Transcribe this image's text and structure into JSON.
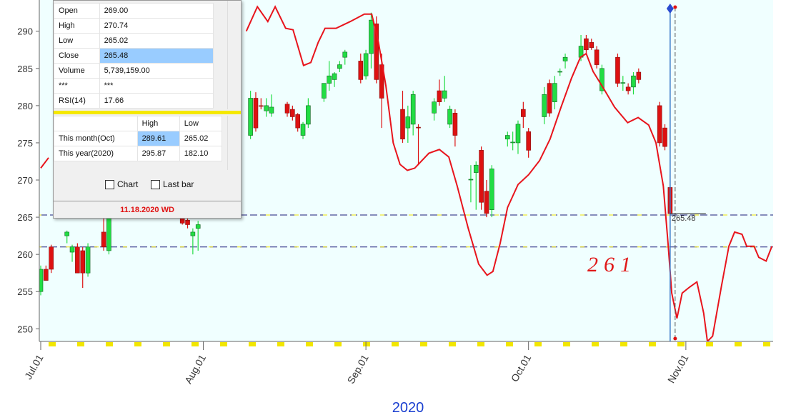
{
  "chart_data": {
    "type": "candlestick",
    "xlabel": "2020",
    "x": [
      0,
      1,
      2,
      5,
      6,
      7,
      8,
      9,
      12,
      13,
      27,
      28,
      29,
      30,
      40,
      41,
      42,
      43,
      44,
      47,
      48,
      49,
      50,
      51,
      54,
      55,
      56,
      57,
      58,
      61,
      62,
      63,
      64,
      65,
      69,
      70,
      71,
      72,
      75,
      76,
      77,
      78,
      79,
      82,
      83,
      84,
      85,
      86,
      89,
      90,
      91,
      92,
      93,
      96,
      97,
      98,
      99,
      100,
      103,
      104,
      105,
      106,
      107,
      110,
      111,
      112,
      113,
      114,
      118,
      119,
      120
    ],
    "open": [
      255,
      258,
      261,
      262.5,
      260.3,
      261,
      260.5,
      257.5,
      263,
      260.5,
      265.5,
      264.6,
      262.5,
      263.5,
      276,
      281,
      280,
      279.3,
      279,
      280.2,
      279.5,
      278.8,
      276,
      277.5,
      281,
      283,
      283.5,
      285,
      286.5,
      286,
      284,
      287,
      291,
      285.5,
      279.5,
      277,
      277.5,
      277.1,
      279,
      282,
      281,
      277.5,
      279,
      270,
      271,
      274,
      268.5,
      266,
      275.5,
      275,
      275,
      279.5,
      276.5,
      278.5,
      283,
      280.5,
      284.5,
      286,
      286.5,
      289,
      288.5,
      287.5,
      282,
      286.5,
      283,
      282.5,
      282.5,
      284.5,
      280,
      277,
      269
    ],
    "high": [
      258.5,
      258.5,
      261.3,
      263.2,
      261.3,
      261.5,
      261,
      261.5,
      266,
      268,
      266,
      265,
      263.5,
      264.5,
      282,
      281.8,
      281,
      281,
      281.5,
      280.5,
      280,
      279,
      277.8,
      281,
      283,
      286,
      284.5,
      286,
      287.5,
      287,
      287.5,
      292.5,
      292,
      287,
      282,
      280,
      282,
      277.5,
      281,
      283.5,
      284,
      280,
      279.5,
      272,
      272.5,
      274.5,
      270,
      272,
      276.5,
      276.5,
      278,
      280.5,
      277,
      282.5,
      283.5,
      284,
      285,
      287,
      289.5,
      289.5,
      289,
      288,
      285.5,
      287,
      284,
      283,
      284.5,
      285,
      280.5,
      277.5,
      270.74
    ],
    "low": [
      254.5,
      256.5,
      257.5,
      261.5,
      259,
      257.5,
      255.5,
      257,
      260.5,
      260,
      264,
      263.5,
      260,
      260.5,
      275.5,
      276.5,
      279.5,
      278.5,
      278.5,
      278.5,
      278,
      276.5,
      275.5,
      277,
      280.5,
      282,
      282.5,
      284.5,
      285.5,
      283,
      283.5,
      285,
      283,
      277,
      275,
      275,
      276,
      272,
      278,
      280,
      280.5,
      277,
      274.5,
      267,
      266,
      266,
      265,
      265,
      274.5,
      274,
      273.5,
      277,
      273,
      277.5,
      278.5,
      279.5,
      284,
      285,
      286,
      287,
      287.5,
      285,
      281.5,
      282.5,
      282,
      281.5,
      281.5,
      283,
      274.5,
      274,
      265.02
    ],
    "close": [
      258,
      256.5,
      258,
      263,
      261,
      257.5,
      257.5,
      261,
      261,
      265.5,
      264.2,
      264,
      263,
      264,
      281,
      277,
      279.9,
      280,
      279.8,
      279,
      278.5,
      277,
      277.5,
      280,
      283,
      284,
      284.3,
      285.5,
      287.2,
      283.5,
      287,
      291.5,
      283.5,
      281,
      275.5,
      278.5,
      281.5,
      277,
      280.5,
      280.5,
      282,
      279.5,
      276,
      270.1,
      272,
      267,
      265.5,
      271.5,
      276,
      275.1,
      277.5,
      278.5,
      274,
      281.5,
      279,
      283,
      284.6,
      286.5,
      288,
      287.5,
      287.8,
      285.5,
      285,
      283,
      283.1,
      282,
      284,
      283.5,
      275,
      274.5,
      265.48
    ],
    "up_color": "#22dd44",
    "down_color": "#dd1111",
    "lines": [
      {
        "color": "#e8141c",
        "x": [
          0,
          1.5,
          null,
          39.2,
          41.3,
          43.3,
          44.7,
          46.7,
          48.1,
          50.1,
          51.5,
          52.9,
          54.2,
          56.3,
          59,
          61.7,
          63.1,
          64.4,
          65.8,
          67.2,
          68.5,
          69.9,
          71.3,
          74,
          76,
          77.8,
          79.4,
          81.5,
          83.5,
          85.1,
          86.2,
          87.6,
          89,
          91,
          93,
          95.1,
          97.1,
          99.2,
          101.2,
          102.9,
          104,
          105.3,
          107.4,
          109.4,
          111.9,
          113.9,
          115.9,
          117.3,
          118.7,
          119.6,
          120.3,
          121.3,
          122.3,
          123.7,
          125.1,
          126.4,
          127.1,
          128.1,
          129.8,
          131.2,
          132.3,
          133.7,
          134.6,
          136,
          136.9,
          138.3,
          139.4
        ],
        "values": [
          271.6,
          273,
          null,
          290,
          293.3,
          291.3,
          293.3,
          290.4,
          290.2,
          285.4,
          285.8,
          288.5,
          290.4,
          290.4,
          291.3,
          292.3,
          292.3,
          288.5,
          282.7,
          275,
          272.1,
          271.3,
          271.6,
          273.6,
          274.1,
          273.1,
          269.2,
          263.5,
          258.7,
          257.2,
          257.7,
          261.5,
          266.3,
          269.4,
          270.7,
          272.6,
          275.5,
          279.8,
          283.7,
          286.5,
          287,
          284.6,
          282.2,
          279.8,
          277.7,
          278.4,
          277.4,
          275,
          269.2,
          261.5,
          254.8,
          251.4,
          254.8,
          255.6,
          256.3,
          252.1,
          248.3,
          249,
          255.8,
          261.1,
          263,
          262.7,
          261.1,
          261.1,
          259.6,
          259.1,
          261.1
        ]
      }
    ],
    "hlines": [
      265.3,
      261
    ],
    "annotations": [
      "261"
    ],
    "xlim": [
      0,
      139.5
    ],
    "xticks": [
      {
        "value": 0,
        "label": "Jul.01"
      },
      {
        "value": 31,
        "label": "Aug.01"
      },
      {
        "value": 62,
        "label": "Sep.01"
      },
      {
        "value": 93,
        "label": "Oct.01"
      },
      {
        "value": 123,
        "label": "Nov.01"
      }
    ],
    "ylim": [
      248.3,
      294.2
    ],
    "yticks": [
      250,
      255,
      260,
      265,
      270,
      275,
      280,
      285,
      290
    ]
  },
  "panel": {
    "quote_rows": [
      [
        "Open",
        "269.00"
      ],
      [
        "High",
        "270.74"
      ],
      [
        "Low",
        "265.02"
      ],
      [
        "Close",
        "265.48"
      ],
      [
        "Volume",
        "5,739,159.00"
      ],
      [
        "***",
        "***"
      ],
      [
        "RSI(14)",
        "17.66"
      ]
    ],
    "range_header": [
      "High",
      "Low"
    ],
    "range_rows": [
      [
        "This month(Oct)",
        "289.61",
        "265.02"
      ],
      [
        "This year(2020)",
        "295.87",
        "182.10"
      ]
    ],
    "checkboxes": [
      "Chart",
      "Last bar"
    ],
    "footer": "11.18.2020 WD"
  }
}
